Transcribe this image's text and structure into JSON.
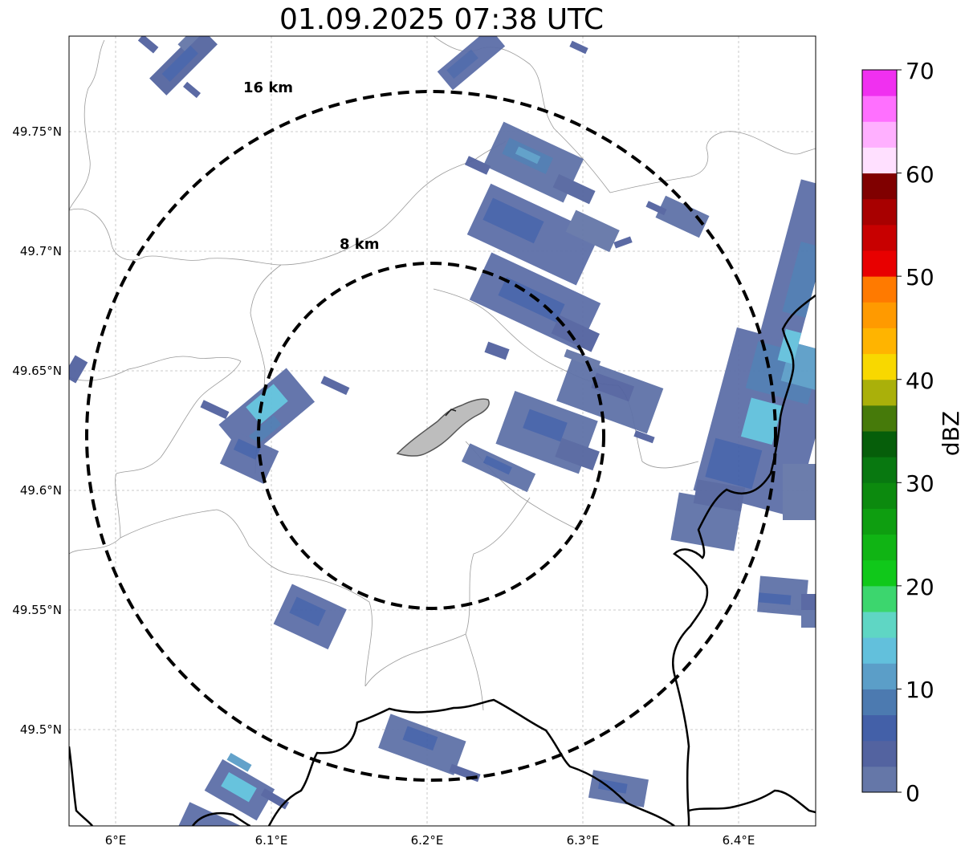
{
  "title": "01.09.2025 07:38 UTC",
  "lat_ticks": [
    "49.75°N",
    "49.7°N",
    "49.65°N",
    "49.6°N",
    "49.55°N",
    "49.5°N"
  ],
  "lon_ticks": [
    "6°E",
    "6.1°E",
    "6.2°E",
    "6.3°E",
    "6.4°E"
  ],
  "rings": [
    {
      "label": "16 km",
      "radius_km": 16
    },
    {
      "label": "8 km",
      "radius_km": 8
    }
  ],
  "colorbar": {
    "label": "dBZ",
    "ticks": [
      "0",
      "10",
      "20",
      "30",
      "40",
      "50",
      "60",
      "70"
    ],
    "range": [
      0,
      70
    ],
    "colors": [
      "#6577a8",
      "#5363a0",
      "#4360a8",
      "#4c7ab0",
      "#5b9ec8",
      "#62c0dc",
      "#5fd6c4",
      "#3cd66e",
      "#10c81a",
      "#10b414",
      "#0e9e10",
      "#0c8a0e",
      "#087810",
      "#065e0a",
      "#467a0a",
      "#aab00a",
      "#f8d800",
      "#ffb400",
      "#ff9a00",
      "#ff7a00",
      "#e80000",
      "#c80000",
      "#a80000",
      "#800000",
      "#ffe0ff",
      "#ffb0ff",
      "#ff70ff",
      "#f030f0"
    ]
  }
}
